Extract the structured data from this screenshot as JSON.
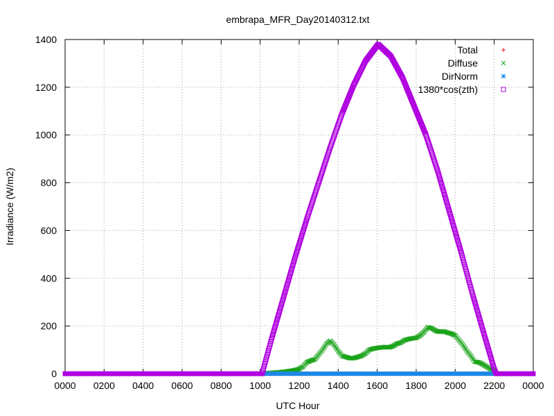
{
  "chart_data": {
    "type": "scatter",
    "title": "embrapa_MFR_Day20140312.txt",
    "xlabel": "UTC Hour",
    "ylabel": "Irradiance (W/m2)",
    "xlim": [
      0,
      24
    ],
    "ylim": [
      0,
      1400
    ],
    "xticks": [
      {
        "value": 0,
        "label": "0000"
      },
      {
        "value": 2,
        "label": "0200"
      },
      {
        "value": 4,
        "label": "0400"
      },
      {
        "value": 6,
        "label": "0600"
      },
      {
        "value": 8,
        "label": "0800"
      },
      {
        "value": 10,
        "label": "1000"
      },
      {
        "value": 12,
        "label": "1200"
      },
      {
        "value": 14,
        "label": "1400"
      },
      {
        "value": 16,
        "label": "1600"
      },
      {
        "value": 18,
        "label": "1800"
      },
      {
        "value": 20,
        "label": "2000"
      },
      {
        "value": 22,
        "label": "2200"
      },
      {
        "value": 24,
        "label": "0000"
      }
    ],
    "yticks": [
      0,
      200,
      400,
      600,
      800,
      1000,
      1200,
      1400
    ],
    "grid": true,
    "legend_position": "top-right",
    "series": [
      {
        "name": "Total",
        "color": "#e31a1c",
        "marker": "plus",
        "x": [
          0,
          9,
          10.1,
          24
        ],
        "y": [
          0,
          0,
          0,
          0
        ]
      },
      {
        "name": "Diffuse",
        "color": "#1aa31a",
        "marker": "cross",
        "x": [
          0,
          10.0,
          10.3,
          10.6,
          11.0,
          11.4,
          11.8,
          12.0,
          12.2,
          12.4,
          12.6,
          12.8,
          13.0,
          13.2,
          13.4,
          13.6,
          13.8,
          14.0,
          14.2,
          14.4,
          14.6,
          14.8,
          15.0,
          15.2,
          15.4,
          15.6,
          15.8,
          16.0,
          16.2,
          16.4,
          16.6,
          16.8,
          17.0,
          17.2,
          17.4,
          17.6,
          17.8,
          18.0,
          18.2,
          18.4,
          18.6,
          18.8,
          19.0,
          19.2,
          19.4,
          19.6,
          19.8,
          20.0,
          20.2,
          20.4,
          20.6,
          20.8,
          21.0,
          21.2,
          21.4,
          21.6,
          21.8,
          22.0,
          22.1,
          24
        ],
        "y": [
          0,
          0,
          2,
          4,
          6,
          10,
          15,
          20,
          30,
          48,
          55,
          60,
          80,
          100,
          125,
          138,
          120,
          95,
          75,
          70,
          65,
          65,
          70,
          75,
          85,
          100,
          105,
          108,
          110,
          112,
          110,
          115,
          125,
          130,
          140,
          145,
          148,
          150,
          160,
          175,
          195,
          190,
          180,
          175,
          178,
          172,
          168,
          160,
          140,
          120,
          95,
          75,
          50,
          48,
          40,
          30,
          20,
          12,
          0,
          0
        ]
      },
      {
        "name": "DirNorm",
        "color": "#1e88e5",
        "marker": "star",
        "x": [
          0,
          24
        ],
        "y": [
          0,
          0
        ]
      },
      {
        "name": "1380*cos(zth)",
        "color": "#b000e0",
        "marker": "square",
        "x": [
          0,
          10.1,
          10.6,
          11.2,
          11.8,
          12.4,
          13.0,
          13.6,
          14.2,
          14.8,
          15.4,
          16.05,
          16.7,
          17.3,
          17.9,
          18.5,
          19.1,
          19.7,
          20.3,
          20.9,
          21.5,
          22.0,
          22.1,
          24
        ],
        "y": [
          0,
          0,
          150,
          320,
          490,
          650,
          800,
          950,
          1090,
          1210,
          1310,
          1380,
          1330,
          1240,
          1120,
          1000,
          850,
          680,
          510,
          330,
          160,
          20,
          0,
          0
        ]
      }
    ]
  }
}
